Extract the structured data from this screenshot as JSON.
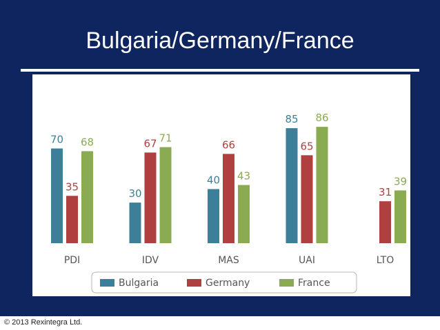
{
  "slide": {
    "title": "Bulgaria/Germany/France",
    "footer": "© 2013 Rexintegra Ltd."
  },
  "colors": {
    "background": "#0f2560",
    "Bulgaria": "#3d7f98",
    "Germany": "#b0403f",
    "France": "#8aab52",
    "axis_text": "#555555"
  },
  "chart_data": {
    "type": "bar",
    "title": "",
    "xlabel": "",
    "ylabel": "",
    "categories": [
      "PDI",
      "IDV",
      "MAS",
      "UAI",
      "LTO"
    ],
    "series": [
      {
        "name": "Bulgaria",
        "values": [
          70,
          30,
          40,
          85,
          null
        ]
      },
      {
        "name": "Germany",
        "values": [
          35,
          67,
          66,
          65,
          31
        ]
      },
      {
        "name": "France",
        "values": [
          68,
          71,
          43,
          86,
          39
        ]
      }
    ],
    "ylim": [
      0,
      100
    ],
    "grid": false,
    "legend": "bottom",
    "data_labels": true
  }
}
